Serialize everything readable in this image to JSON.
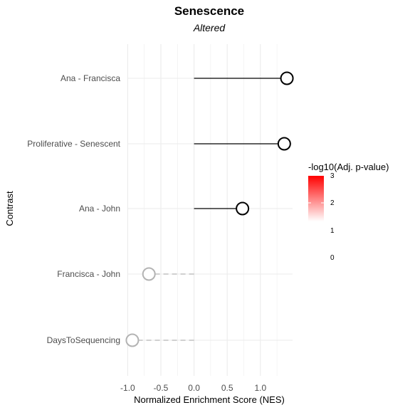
{
  "chart_data": {
    "type": "lollipop",
    "title": "Senescence",
    "subtitle": "Altered",
    "xlabel": "Normalized Enrichment Score (NES)",
    "ylabel": "Contrast",
    "xlim": [
      -1.05,
      1.5
    ],
    "xticks": [
      -1.0,
      -0.5,
      0.0,
      0.5,
      1.0
    ],
    "xtick_labels": [
      "-1.0",
      "-0.5",
      "0.0",
      "0.5",
      "1.0"
    ],
    "categories": [
      "Ana - Francisca",
      "Proliferative - Senescent",
      "Ana - John",
      "Francisca - John",
      "DaysToSequencing"
    ],
    "nes": [
      1.4,
      1.36,
      0.73,
      -0.68,
      -0.93
    ],
    "significant": [
      true,
      true,
      true,
      false,
      false
    ],
    "grid": true,
    "legend": {
      "title": "-log10(Adj. p-value)",
      "placement": "right",
      "range": [
        1,
        3
      ],
      "tick_labels": [
        "3",
        "2",
        "1",
        "0"
      ],
      "color_high": "#ff0000",
      "color_low": "#ffffff"
    },
    "colors": {
      "significant_stroke": "#000000",
      "nonsignificant_stroke": "#b3b3b3"
    }
  }
}
